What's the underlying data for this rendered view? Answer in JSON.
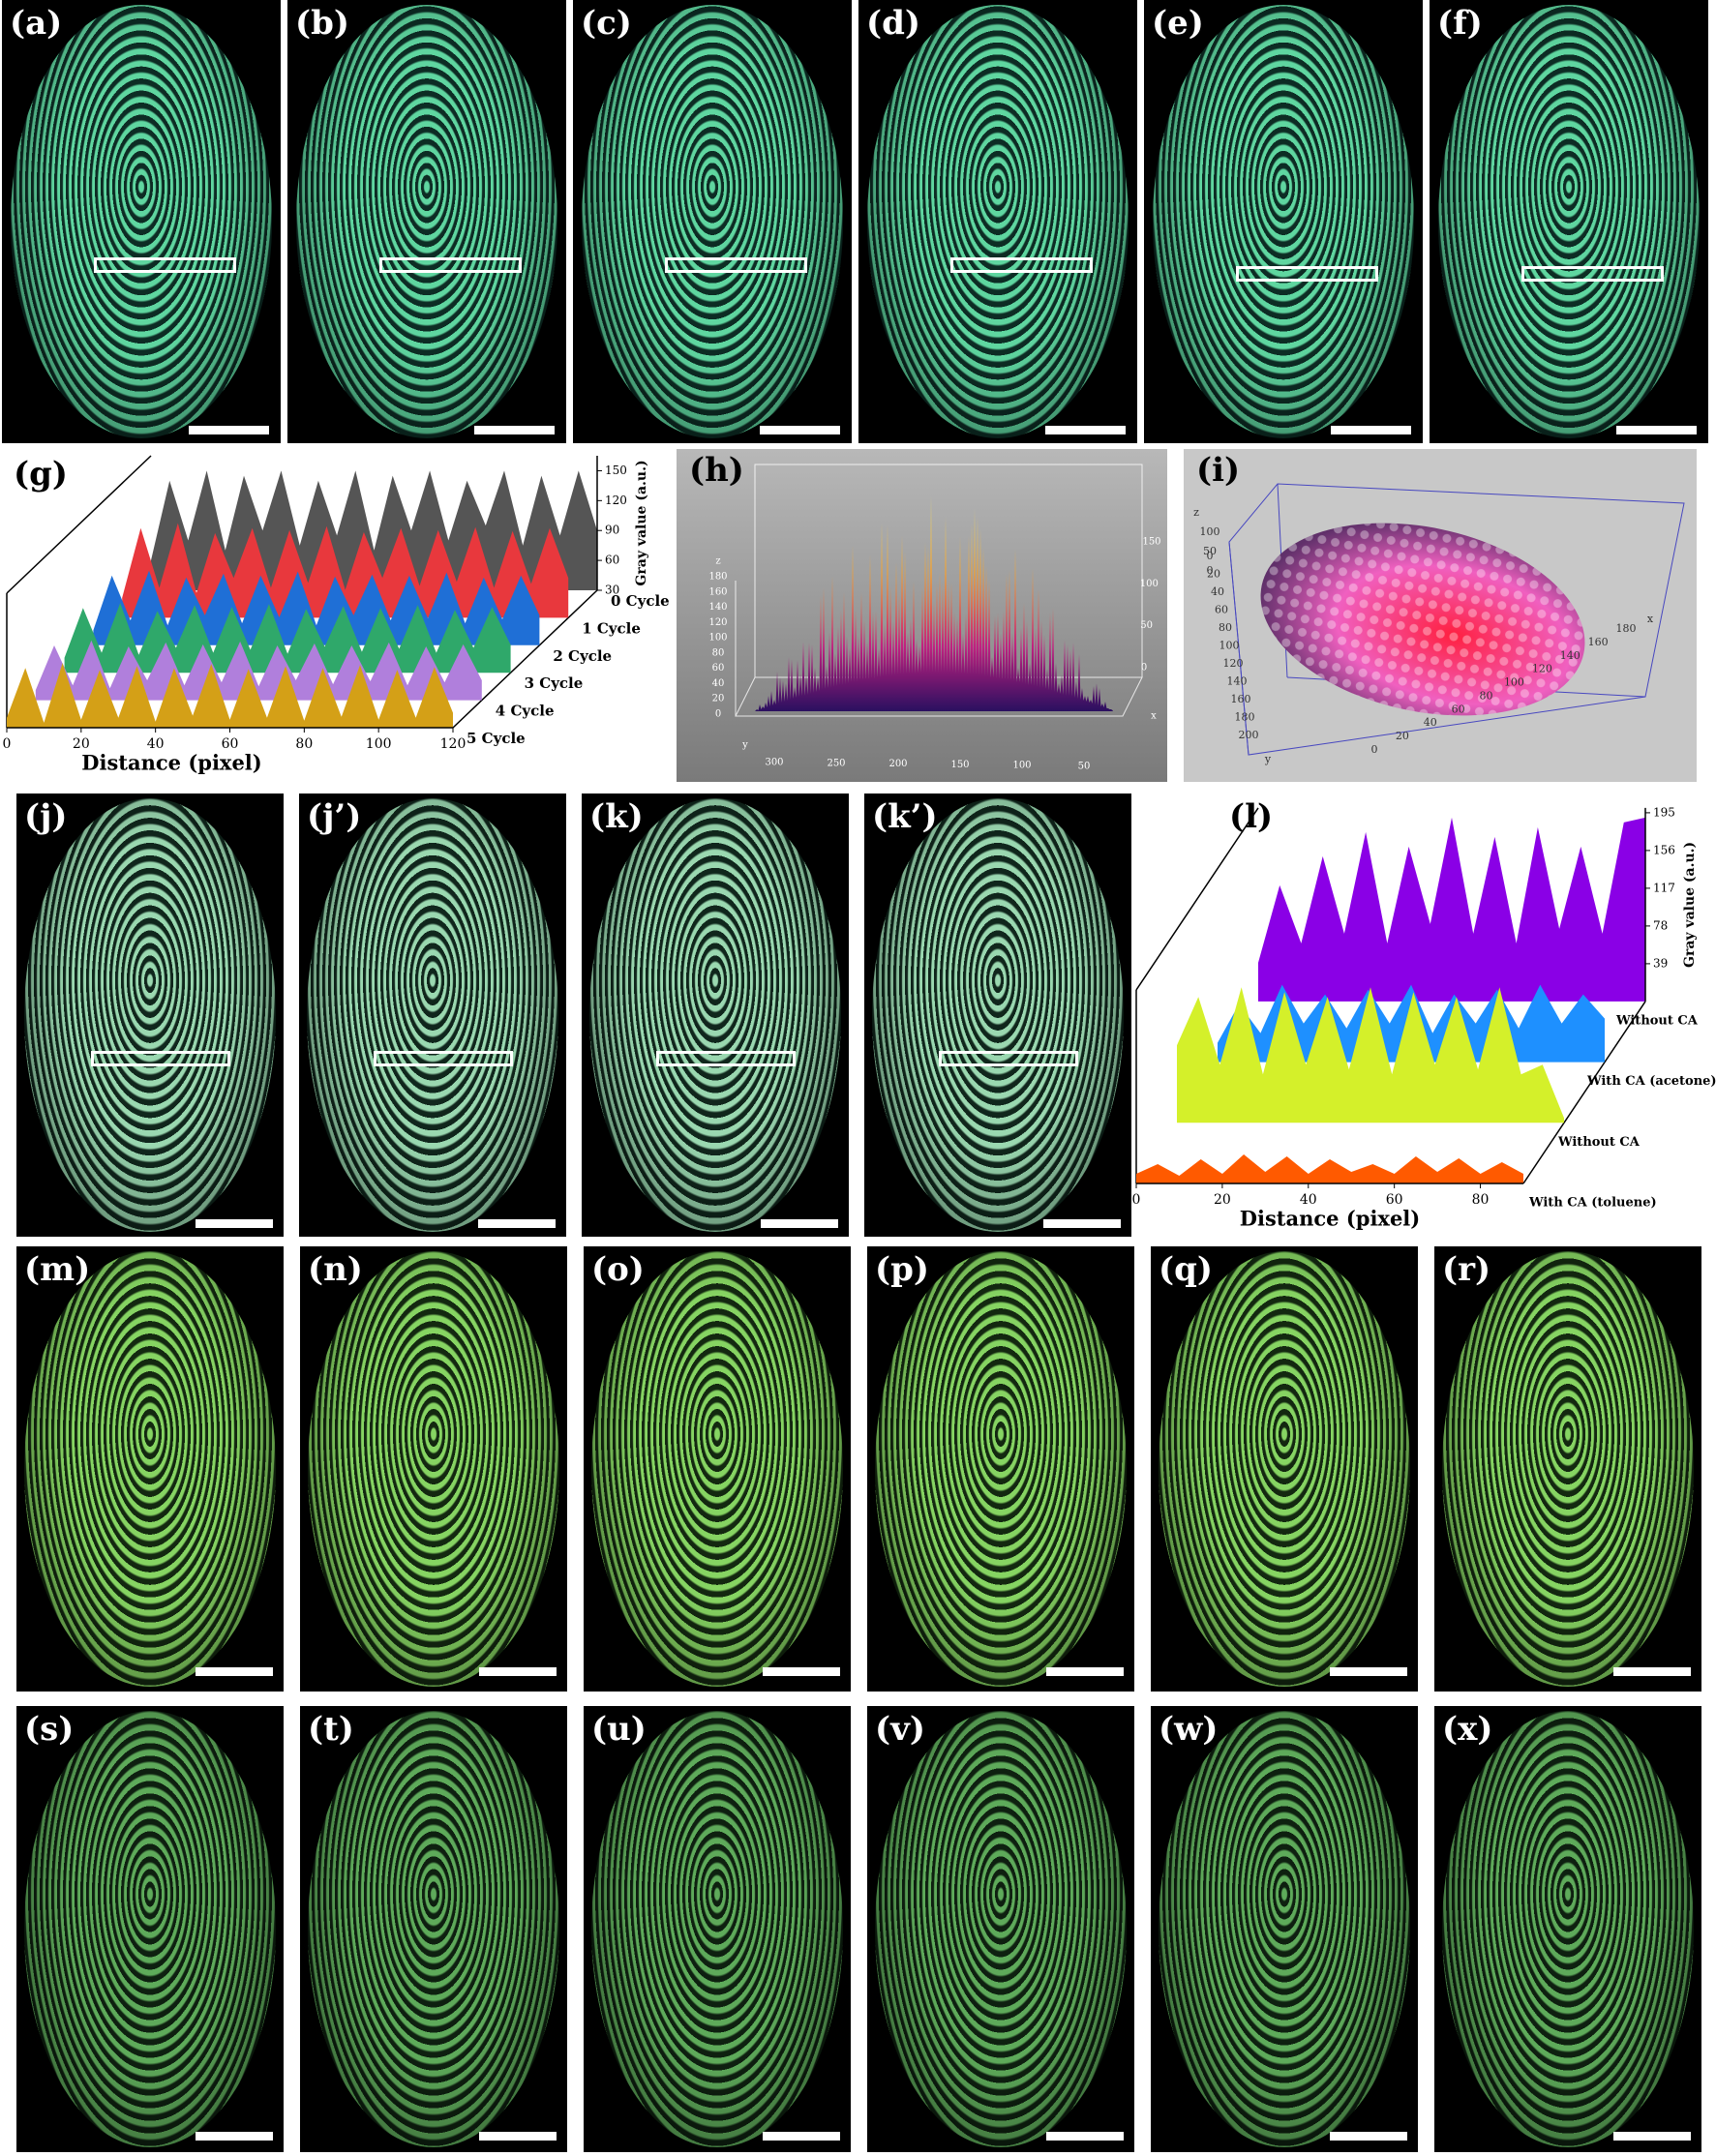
{
  "panel_labels": {
    "row1": [
      "(a)",
      "(b)",
      "(c)",
      "(d)",
      "(e)",
      "(f)"
    ],
    "row3": [
      "(j)",
      "(j’)",
      "(k)",
      "(k’)"
    ],
    "row4": [
      "(m)",
      "(n)",
      "(o)",
      "(p)",
      "(q)",
      "(r)"
    ],
    "row5": [
      "(s)",
      "(t)",
      "(u)",
      "(v)",
      "(w)",
      "(x)"
    ]
  },
  "chart_data": [
    {
      "type": "ridgeline",
      "label": "(g)",
      "x_label": "Distance (pixel)",
      "y_label": "Gray value (a.u.)",
      "x": [
        0,
        5,
        10,
        15,
        20,
        25,
        30,
        35,
        40,
        45,
        50,
        55,
        60,
        65,
        70,
        75,
        80,
        85,
        90,
        95,
        100,
        105,
        110,
        115,
        120
      ],
      "xlim": [
        0,
        120
      ],
      "xticks": [
        0,
        20,
        40,
        60,
        80,
        100,
        120
      ],
      "ylim": [
        30,
        165
      ],
      "yticks": [
        30,
        60,
        90,
        120,
        150
      ],
      "series": [
        {
          "name": "0 Cycle",
          "color": "#555555",
          "values": [
            60,
            140,
            80,
            150,
            70,
            145,
            90,
            150,
            75,
            140,
            85,
            150,
            70,
            145,
            90,
            150,
            80,
            140,
            95,
            150,
            75,
            145,
            85,
            150,
            90
          ]
        },
        {
          "name": "1 Cycle",
          "color": "#e8383d",
          "values": [
            50,
            120,
            60,
            125,
            55,
            115,
            70,
            120,
            60,
            118,
            65,
            122,
            58,
            116,
            70,
            120,
            62,
            118,
            66,
            121,
            60,
            117,
            64,
            120,
            70
          ]
        },
        {
          "name": "2 Cycle",
          "color": "#1f6fd6",
          "values": [
            45,
            100,
            55,
            105,
            50,
            98,
            60,
            102,
            52,
            100,
            58,
            104,
            50,
            99,
            60,
            101,
            55,
            100,
            57,
            103,
            52,
            98,
            56,
            100,
            60
          ]
        },
        {
          "name": "3 Cycle",
          "color": "#2fa86a",
          "values": [
            45,
            95,
            50,
            100,
            48,
            92,
            55,
            98,
            50,
            96,
            53,
            99,
            49,
            94,
            56,
            97,
            51,
            95,
            54,
            98,
            50,
            93,
            55,
            96,
            58
          ]
        },
        {
          "name": "4 Cycle",
          "color": "#b07fdc",
          "values": [
            40,
            85,
            45,
            90,
            42,
            84,
            50,
            88,
            45,
            86,
            48,
            89,
            44,
            85,
            50,
            87,
            46,
            85,
            49,
            88,
            45,
            84,
            48,
            86,
            50
          ]
        },
        {
          "name": "5 Cycle",
          "color": "#d4a017",
          "values": [
            40,
            90,
            35,
            95,
            38,
            88,
            40,
            92,
            36,
            90,
            42,
            94,
            38,
            89,
            40,
            92,
            37,
            90,
            41,
            93,
            38,
            88,
            40,
            91,
            45
          ]
        }
      ]
    },
    {
      "type": "ridgeline",
      "label": "(l)",
      "x_label": "Distance (pixel)",
      "y_label": "Gray value (a.u.)",
      "x": [
        0,
        5,
        10,
        15,
        20,
        25,
        30,
        35,
        40,
        45,
        50,
        55,
        60,
        65,
        70,
        75,
        80,
        85,
        90
      ],
      "xlim": [
        0,
        90
      ],
      "xticks": [
        0,
        20,
        40,
        60,
        80
      ],
      "ylim": [
        0,
        200
      ],
      "yticks": [
        39,
        78,
        117,
        156,
        195
      ],
      "series": [
        {
          "name": "Without CA",
          "color": "#8a00e6",
          "values": [
            40,
            120,
            60,
            150,
            70,
            175,
            60,
            160,
            80,
            190,
            70,
            170,
            60,
            180,
            75,
            160,
            70,
            185,
            190
          ]
        },
        {
          "name": "With CA (acetone)",
          "color": "#1e90ff",
          "values": [
            20,
            60,
            30,
            80,
            40,
            70,
            35,
            75,
            40,
            80,
            30,
            70,
            40,
            75,
            35,
            80,
            40,
            70,
            45
          ]
        },
        {
          "name": "Without CA",
          "color": "#d4f02a",
          "values": [
            80,
            130,
            60,
            140,
            50,
            135,
            60,
            130,
            55,
            140,
            50,
            135,
            60,
            130,
            55,
            140,
            50,
            60,
            5
          ]
        },
        {
          "name": "With CA (toluene)",
          "color": "#ff5a00",
          "values": [
            10,
            20,
            8,
            25,
            10,
            30,
            12,
            28,
            10,
            25,
            12,
            20,
            10,
            28,
            12,
            26,
            10,
            22,
            10
          ]
        }
      ]
    }
  ],
  "surface_plots": [
    {
      "label": "(h)",
      "z_axis": "z",
      "z_ticks": [
        0,
        20,
        40,
        60,
        80,
        100,
        120,
        140,
        160,
        180
      ],
      "y_axis": "y",
      "y_ticks": [
        300,
        250,
        200,
        150,
        100,
        50
      ],
      "x_axis": "x",
      "x_ticks": [
        0,
        50,
        100,
        150
      ]
    },
    {
      "label": "(i)",
      "z_axis": "z",
      "z_ticks": [
        0,
        50,
        100
      ],
      "y_axis": "y",
      "y_ticks": [
        0,
        20,
        40,
        60,
        80,
        100,
        120,
        140,
        160,
        180,
        200
      ],
      "x_axis": "x",
      "x_ticks": [
        0,
        20,
        40,
        60,
        80,
        100,
        120,
        140,
        160,
        180
      ]
    }
  ]
}
